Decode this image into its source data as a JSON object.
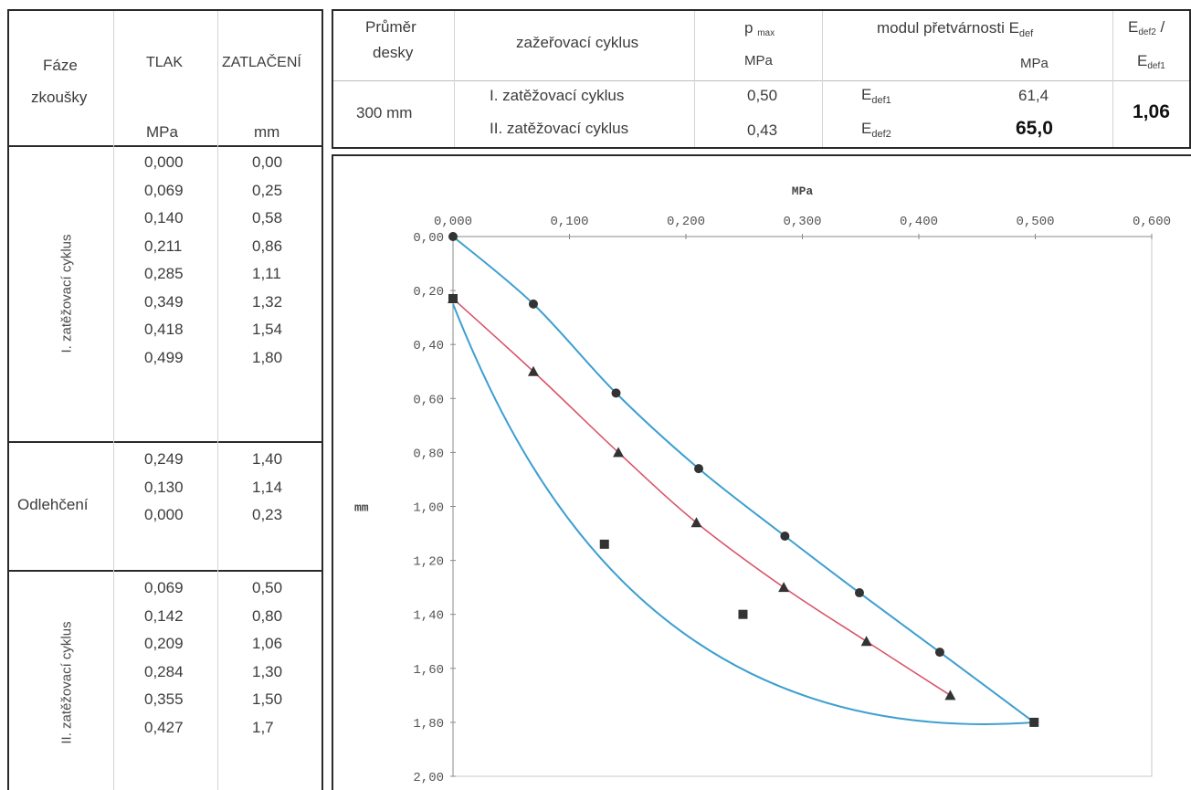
{
  "left_table": {
    "headers": {
      "phase_line1": "Fáze",
      "phase_line2": "zkoušky",
      "pressure": "TLAK",
      "displacement": "ZATLAČENÍ",
      "pressure_unit": "MPa",
      "displacement_unit": "mm"
    },
    "sections": [
      {
        "label": "I. zatěžovací cyklus",
        "rows": [
          {
            "p": "0,000",
            "s": "0,00"
          },
          {
            "p": "0,069",
            "s": "0,25"
          },
          {
            "p": "0,140",
            "s": "0,58"
          },
          {
            "p": "0,211",
            "s": "0,86"
          },
          {
            "p": "0,285",
            "s": "1,11"
          },
          {
            "p": "0,349",
            "s": "1,32"
          },
          {
            "p": "0,418",
            "s": "1,54"
          },
          {
            "p": "0,499",
            "s": "1,80"
          }
        ]
      },
      {
        "label": "Odlehčení",
        "rows": [
          {
            "p": "0,249",
            "s": "1,40"
          },
          {
            "p": "0,130",
            "s": "1,14"
          },
          {
            "p": "0,000",
            "s": "0,23"
          }
        ]
      },
      {
        "label": "II. zatěžovací cyklus",
        "rows": [
          {
            "p": "0,069",
            "s": "0,50"
          },
          {
            "p": "0,142",
            "s": "0,80"
          },
          {
            "p": "0,209",
            "s": "1,06"
          },
          {
            "p": "0,284",
            "s": "1,30"
          },
          {
            "p": "0,355",
            "s": "1,50"
          },
          {
            "p": "0,427",
            "s": "1,7"
          }
        ]
      }
    ]
  },
  "summary_table": {
    "h_diameter_1": "Průměr",
    "h_diameter_2": "desky",
    "h_cycle": "zažeřovací cyklus",
    "h_pmax_main": "p",
    "h_pmax_sub": "max",
    "h_pmax_unit": "MPa",
    "h_modulus": "modul přetvárnosti E",
    "h_modulus_sub": "def",
    "h_modulus_unit": "MPa",
    "h_ratio_num": "E",
    "h_ratio_num_sub": "def2",
    "h_ratio_sep": " /",
    "h_ratio_den": "E",
    "h_ratio_den_sub": "def1",
    "diameter": "300 mm",
    "cycle1": "I. zatěžovací cyklus",
    "cycle2": "II. zatěžovací cyklus",
    "pmax1": "0,50",
    "pmax2": "0,43",
    "edef1_label": "E",
    "edef1_sub": "def1",
    "edef2_label": "E",
    "edef2_sub": "def2",
    "edef1": "61,4",
    "edef2": "65,0",
    "ratio": "1,06"
  },
  "chart_data": {
    "type": "scatter",
    "xlabel": "MPa",
    "ylabel": "mm",
    "xlim": [
      0,
      0.6
    ],
    "ylim": [
      0,
      2.0
    ],
    "x_axis_position": "top",
    "y_inverted": true,
    "x_ticks": [
      "0,000",
      "0,100",
      "0,200",
      "0,300",
      "0,400",
      "0,500",
      "0,600"
    ],
    "y_ticks": [
      "0,00",
      "0,20",
      "0,40",
      "0,60",
      "0,80",
      "1,00",
      "1,20",
      "1,40",
      "1,60",
      "1,80",
      "2,00"
    ],
    "series": [
      {
        "marker": "circle",
        "color": "#3d9fd0",
        "x": [
          0,
          0.069,
          0.14,
          0.211,
          0.285,
          0.349,
          0.418,
          0.499
        ],
        "y": [
          0.0,
          0.25,
          0.58,
          0.86,
          1.11,
          1.32,
          1.54,
          1.8
        ]
      },
      {
        "marker": "square",
        "color": "#3d9fd0",
        "x": [
          0.499,
          0.249,
          0.13,
          0.0
        ],
        "y": [
          1.8,
          1.4,
          1.14,
          0.23
        ]
      },
      {
        "marker": "triangle",
        "color": "#d9536a",
        "x": [
          0.0,
          0.069,
          0.142,
          0.209,
          0.284,
          0.355,
          0.427
        ],
        "y": [
          0.23,
          0.5,
          0.8,
          1.06,
          1.3,
          1.5,
          1.7
        ]
      }
    ],
    "colors": {
      "load_line": "#3d9fd0",
      "reload_line": "#d9536a",
      "marker": "#333333"
    }
  }
}
